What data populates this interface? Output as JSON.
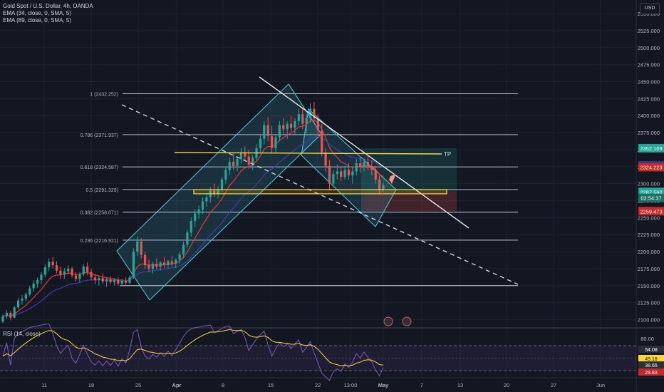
{
  "header": {
    "symbol_line": "Gold Spot / U.S. Dollar, 4h, OANDA",
    "ema1": "EMA (34, close, 0, SMA, 5)",
    "ema2": "EMA (89, close, 0, SMA, 5)",
    "currency": "USD"
  },
  "rsi": {
    "label": "RSI (14, close)"
  },
  "colors": {
    "background": "#131722",
    "bull": "#26a69a",
    "bear": "#ef5350",
    "channel": "#4dd0e1",
    "ema34": "#e53935",
    "ema89": "#3f3fb0",
    "yellow": "#fdd835",
    "rsi_line": "#7e57c2",
    "rsi_ma": "#fdd835"
  },
  "chart_data": {
    "type": "candlestick",
    "ylim": [
      2090,
      2570
    ],
    "y_ticks": [
      "2550.000",
      "2525.000",
      "2500.000",
      "2475.000",
      "2450.000",
      "2425.000",
      "2400.000",
      "2375.000",
      "2350.000",
      "2325.000",
      "2300.000",
      "2275.000",
      "2250.000",
      "2225.000",
      "2200.000",
      "2175.000",
      "2150.000",
      "2125.000",
      "2100.000"
    ],
    "x_ticks": [
      "11",
      "18",
      "25",
      "Apr",
      "8",
      "15",
      "22",
      "13:00",
      "May",
      "7",
      "13",
      "20",
      "27",
      "Jun"
    ],
    "fib_levels": [
      {
        "label": "1 (2432.252)",
        "value": 2432.252
      },
      {
        "label": "0.786 (2371.937)",
        "value": 2371.937
      },
      {
        "label": "0.618 (2324.587)",
        "value": 2324.587
      },
      {
        "label": "0.5 (2291.329)",
        "value": 2291.329
      },
      {
        "label": "0.382 (2258.071)",
        "value": 2258.071
      },
      {
        "label": "0.236 (2216.921)",
        "value": 2216.921
      },
      {
        "label": "",
        "value": 2150
      }
    ],
    "tp_label": "TP",
    "price_badges": [
      {
        "text": "2352.109",
        "value": 2352.109,
        "color": "#26a69a"
      },
      {
        "text": "2326.989",
        "value": 2326.989,
        "color": "#283593"
      },
      {
        "text": "2324.223",
        "value": 2324.223,
        "color": "#c62828"
      },
      {
        "text": "2287.666",
        "value": 2287.666,
        "color": "#b2b5be"
      },
      {
        "text": "2287.560",
        "value": 2287.56,
        "color": "#26a69a"
      },
      {
        "text": "02:54:37",
        "value": 2279,
        "color": "#1f6f66"
      },
      {
        "text": "2259.473",
        "value": 2259.473,
        "color": "#c62828"
      }
    ],
    "rsi_ticks": [
      "80.00"
    ],
    "rsi_badges": [
      {
        "text": "54.08",
        "color": "#2a2e39"
      },
      {
        "text": "45.18",
        "color": "#fdd835"
      },
      {
        "text": "38.65",
        "color": "#2a2e39"
      },
      {
        "text": "29.83",
        "color": "#c62828"
      }
    ],
    "candles": [
      [
        2097,
        2108,
        2095,
        2105
      ],
      [
        2105,
        2114,
        2101,
        2110
      ],
      [
        2110,
        2112,
        2099,
        2103
      ],
      [
        2103,
        2120,
        2102,
        2118
      ],
      [
        2118,
        2132,
        2115,
        2128
      ],
      [
        2128,
        2136,
        2122,
        2131
      ],
      [
        2131,
        2140,
        2127,
        2137
      ],
      [
        2137,
        2150,
        2134,
        2146
      ],
      [
        2146,
        2158,
        2141,
        2153
      ],
      [
        2153,
        2162,
        2147,
        2158
      ],
      [
        2158,
        2170,
        2152,
        2166
      ],
      [
        2166,
        2181,
        2162,
        2177
      ],
      [
        2177,
        2190,
        2171,
        2185
      ],
      [
        2185,
        2192,
        2175,
        2180
      ],
      [
        2180,
        2186,
        2168,
        2172
      ],
      [
        2172,
        2178,
        2160,
        2166
      ],
      [
        2166,
        2176,
        2160,
        2171
      ],
      [
        2171,
        2180,
        2166,
        2175
      ],
      [
        2175,
        2178,
        2162,
        2165
      ],
      [
        2165,
        2170,
        2156,
        2160
      ],
      [
        2160,
        2170,
        2155,
        2167
      ],
      [
        2167,
        2182,
        2164,
        2178
      ],
      [
        2178,
        2184,
        2165,
        2170
      ],
      [
        2170,
        2175,
        2158,
        2162
      ],
      [
        2162,
        2167,
        2152,
        2158
      ],
      [
        2158,
        2164,
        2150,
        2161
      ],
      [
        2161,
        2168,
        2153,
        2156
      ],
      [
        2156,
        2162,
        2148,
        2159
      ],
      [
        2159,
        2164,
        2152,
        2155
      ],
      [
        2155,
        2161,
        2150,
        2158
      ],
      [
        2158,
        2162,
        2150,
        2153
      ],
      [
        2153,
        2160,
        2149,
        2157
      ],
      [
        2157,
        2162,
        2151,
        2154
      ],
      [
        2154,
        2165,
        2152,
        2162
      ],
      [
        2162,
        2205,
        2160,
        2200
      ],
      [
        2200,
        2222,
        2194,
        2215
      ],
      [
        2215,
        2220,
        2190,
        2195
      ],
      [
        2195,
        2200,
        2175,
        2180
      ],
      [
        2180,
        2188,
        2170,
        2175
      ],
      [
        2175,
        2185,
        2168,
        2182
      ],
      [
        2182,
        2190,
        2174,
        2178
      ],
      [
        2178,
        2186,
        2172,
        2184
      ],
      [
        2184,
        2192,
        2176,
        2180
      ],
      [
        2180,
        2188,
        2175,
        2186
      ],
      [
        2186,
        2194,
        2178,
        2182
      ],
      [
        2182,
        2190,
        2176,
        2188
      ],
      [
        2188,
        2200,
        2182,
        2196
      ],
      [
        2196,
        2215,
        2190,
        2210
      ],
      [
        2210,
        2232,
        2205,
        2228
      ],
      [
        2228,
        2250,
        2222,
        2245
      ],
      [
        2245,
        2262,
        2236,
        2256
      ],
      [
        2256,
        2268,
        2248,
        2262
      ],
      [
        2262,
        2280,
        2255,
        2274
      ],
      [
        2274,
        2286,
        2266,
        2280
      ],
      [
        2280,
        2295,
        2272,
        2290
      ],
      [
        2290,
        2300,
        2280,
        2285
      ],
      [
        2285,
        2296,
        2278,
        2292
      ],
      [
        2292,
        2310,
        2288,
        2306
      ],
      [
        2306,
        2325,
        2300,
        2320
      ],
      [
        2320,
        2338,
        2312,
        2332
      ],
      [
        2332,
        2345,
        2320,
        2326
      ],
      [
        2326,
        2340,
        2318,
        2336
      ],
      [
        2336,
        2352,
        2330,
        2346
      ],
      [
        2346,
        2355,
        2335,
        2340
      ],
      [
        2340,
        2350,
        2322,
        2328
      ],
      [
        2328,
        2342,
        2320,
        2338
      ],
      [
        2338,
        2358,
        2334,
        2352
      ],
      [
        2352,
        2372,
        2346,
        2366
      ],
      [
        2366,
        2392,
        2358,
        2386
      ],
      [
        2386,
        2398,
        2362,
        2370
      ],
      [
        2370,
        2385,
        2345,
        2352
      ],
      [
        2352,
        2372,
        2346,
        2368
      ],
      [
        2368,
        2392,
        2362,
        2386
      ],
      [
        2386,
        2396,
        2372,
        2380
      ],
      [
        2380,
        2392,
        2366,
        2388
      ],
      [
        2388,
        2400,
        2376,
        2382
      ],
      [
        2382,
        2396,
        2372,
        2392
      ],
      [
        2392,
        2410,
        2385,
        2402
      ],
      [
        2402,
        2412,
        2380,
        2388
      ],
      [
        2388,
        2402,
        2374,
        2396
      ],
      [
        2396,
        2418,
        2390,
        2410
      ],
      [
        2410,
        2420,
        2390,
        2396
      ],
      [
        2396,
        2402,
        2370,
        2378
      ],
      [
        2378,
        2388,
        2340,
        2346
      ],
      [
        2346,
        2352,
        2318,
        2326
      ],
      [
        2326,
        2335,
        2290,
        2300
      ],
      [
        2300,
        2320,
        2294,
        2314
      ],
      [
        2314,
        2328,
        2306,
        2318
      ],
      [
        2318,
        2324,
        2304,
        2310
      ],
      [
        2310,
        2326,
        2306,
        2320
      ],
      [
        2320,
        2330,
        2306,
        2312
      ],
      [
        2312,
        2324,
        2300,
        2318
      ],
      [
        2318,
        2336,
        2312,
        2330
      ],
      [
        2330,
        2340,
        2316,
        2324
      ],
      [
        2324,
        2338,
        2318,
        2332
      ],
      [
        2332,
        2340,
        2320,
        2326
      ],
      [
        2326,
        2334,
        2312,
        2320
      ],
      [
        2320,
        2326,
        2300,
        2306
      ],
      [
        2306,
        2312,
        2284,
        2290
      ],
      [
        2290,
        2302,
        2284,
        2298
      ]
    ]
  }
}
